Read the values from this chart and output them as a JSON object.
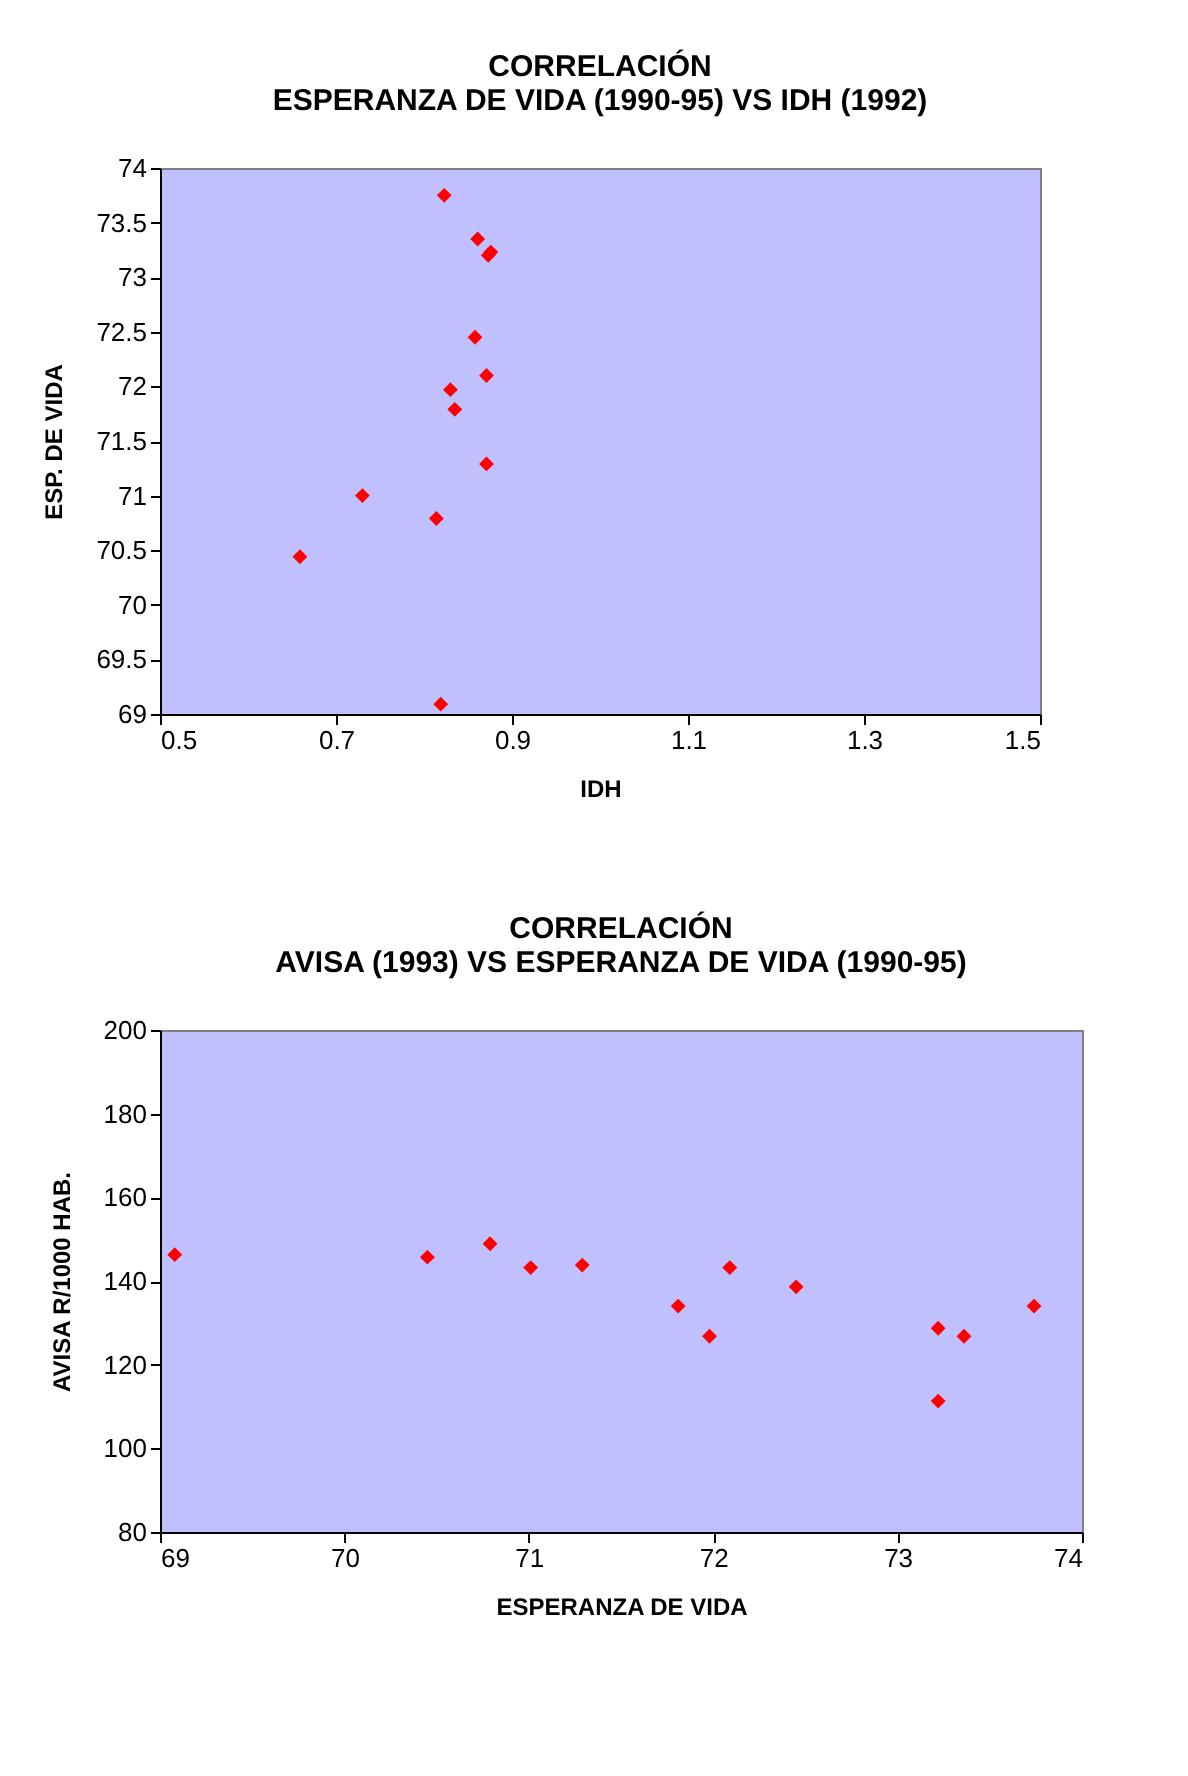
{
  "chart_data": [
    {
      "type": "scatter",
      "title": [
        "CORRELACIÓN",
        "ESPERANZA DE VIDA (1990-95) VS IDH (1992)"
      ],
      "xlabel": "IDH",
      "ylabel": "ESP. DE VIDA",
      "x": [
        0.823,
        0.861,
        0.876,
        0.873,
        0.858,
        0.871,
        0.83,
        0.835,
        0.871,
        0.73,
        0.814,
        0.659,
        0.819
      ],
      "series": [
        {
          "color": "#ff0000",
          "values": [
            73.75,
            73.35,
            73.23,
            73.2,
            72.45,
            72.1,
            71.97,
            71.79,
            71.29,
            71.0,
            70.79,
            70.44,
            69.09
          ]
        }
      ],
      "xlim": [
        0.5,
        1.5
      ],
      "xticks": [
        0.5,
        0.7,
        0.9,
        1.1,
        1.3,
        1.5
      ],
      "ylim": [
        69,
        74
      ],
      "yticks": [
        69,
        69.5,
        70,
        70.5,
        71,
        71.5,
        72,
        72.5,
        73,
        73.5,
        74
      ],
      "marker": "diamond",
      "grid": false,
      "legend": false
    },
    {
      "type": "scatter",
      "title": [
        "CORRELACIÓN",
        "AVISA (1993) VS ESPERANZA DE VIDA (1990-95)"
      ],
      "xlabel": "ESPERANZA DE VIDA",
      "ylabel": "AVISA R/1000 HAB.",
      "x": [
        69.08,
        70.45,
        70.79,
        71.01,
        71.29,
        71.81,
        71.98,
        72.09,
        72.45,
        73.22,
        73.22,
        73.36,
        73.74
      ],
      "series": [
        {
          "color": "#ff0000",
          "values": [
            146.3,
            145.7,
            148.9,
            143.2,
            143.8,
            134.0,
            126.8,
            143.2,
            138.6,
            128.7,
            111.3,
            126.8,
            134.0
          ]
        }
      ],
      "xlim": [
        69,
        74
      ],
      "xticks": [
        69,
        70,
        71,
        72,
        73,
        74
      ],
      "ylim": [
        80,
        200
      ],
      "yticks": [
        80,
        100,
        120,
        140,
        160,
        180,
        200
      ],
      "marker": "diamond",
      "grid": false,
      "legend": false
    }
  ]
}
